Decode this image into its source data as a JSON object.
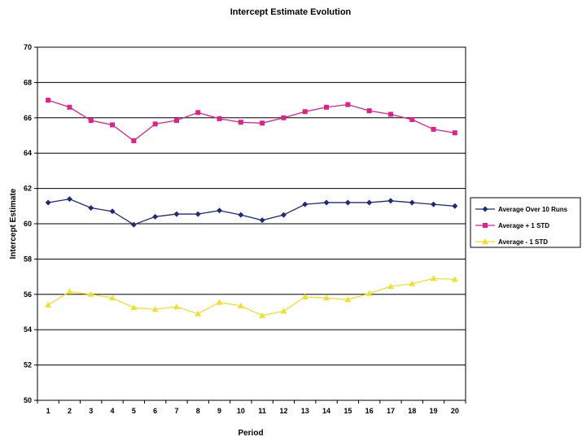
{
  "chart_data": {
    "type": "line",
    "title": "Intercept Estimate Evolution",
    "xlabel": "Period",
    "ylabel": "Intercept Estimate",
    "x": [
      1,
      2,
      3,
      4,
      5,
      6,
      7,
      8,
      9,
      10,
      11,
      12,
      13,
      14,
      15,
      16,
      17,
      18,
      19,
      20
    ],
    "ylim": [
      50,
      70
    ],
    "yticks": [
      50,
      52,
      54,
      56,
      58,
      60,
      62,
      64,
      66,
      68,
      70
    ],
    "grid": true,
    "legend_position": "right",
    "series": [
      {
        "name": "Average Over 10 Runs",
        "color": "#1f2a7a",
        "marker": "diamond",
        "values": [
          61.2,
          61.4,
          60.9,
          60.7,
          59.95,
          60.4,
          60.55,
          60.55,
          60.75,
          60.5,
          60.2,
          60.5,
          61.1,
          61.2,
          61.2,
          61.2,
          61.3,
          61.2,
          61.1,
          61.0
        ]
      },
      {
        "name": "Average + 1 STD",
        "color": "#e0218a",
        "marker": "square",
        "values": [
          67.0,
          66.6,
          65.85,
          65.6,
          64.7,
          65.65,
          65.85,
          66.3,
          65.95,
          65.75,
          65.7,
          66.0,
          66.35,
          66.6,
          66.75,
          66.4,
          66.2,
          65.9,
          65.35,
          65.15
        ]
      },
      {
        "name": "Average - 1 STD",
        "color": "#f0e030",
        "marker": "triangle",
        "values": [
          55.4,
          56.15,
          56.0,
          55.8,
          55.25,
          55.15,
          55.3,
          54.9,
          55.55,
          55.35,
          54.8,
          55.05,
          55.85,
          55.8,
          55.7,
          56.05,
          56.45,
          56.6,
          56.9,
          56.85
        ]
      }
    ]
  }
}
